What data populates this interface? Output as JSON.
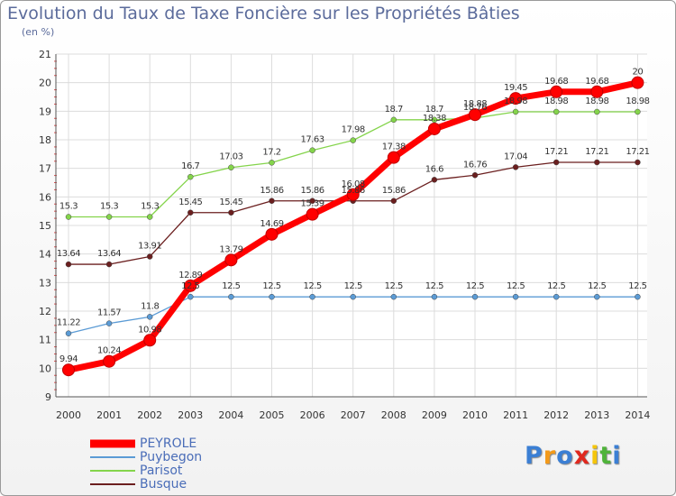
{
  "chart_data": {
    "type": "line",
    "title": "Evolution du Taux de Taxe Foncière sur les Propriétés Bâties",
    "unit": "(en %)",
    "x": [
      "2000",
      "2001",
      "2002",
      "2003",
      "2004",
      "2005",
      "2006",
      "2007",
      "2008",
      "2009",
      "2010",
      "2011",
      "2012",
      "2013",
      "2014"
    ],
    "ylim": [
      9,
      21
    ],
    "yticks": [
      "9",
      "10",
      "11",
      "12",
      "13",
      "14",
      "15",
      "16",
      "17",
      "18",
      "19",
      "20",
      "21"
    ],
    "grid": true,
    "legend_position": "bottom-left",
    "series": [
      {
        "name": "PEYROLE",
        "color": "#ff0000",
        "values": [
          9.94,
          10.24,
          10.98,
          12.89,
          13.79,
          14.69,
          15.39,
          16.08,
          17.38,
          18.38,
          18.88,
          19.45,
          19.68,
          19.68,
          20
        ],
        "labels": [
          "9.94",
          "10.24",
          "10.98",
          "12.89",
          "13.79",
          "14.69",
          "15.39",
          "16.08",
          "17.38",
          "18.38",
          "18.88",
          "19.45",
          "19.68",
          "19.68",
          "20"
        ]
      },
      {
        "name": "Puybegon",
        "color": "#5b9bd5",
        "values": [
          11.22,
          11.57,
          11.8,
          12.5,
          12.5,
          12.5,
          12.5,
          12.5,
          12.5,
          12.5,
          12.5,
          12.5,
          12.5,
          12.5,
          12.5
        ],
        "labels": [
          "11.22",
          "11.57",
          "11.8",
          "12.5",
          "12.5",
          "12.5",
          "12.5",
          "12.5",
          "12.5",
          "12.5",
          "12.5",
          "12.5",
          "12.5",
          "12.5",
          "12.5"
        ]
      },
      {
        "name": "Parisot",
        "color": "#84d44b",
        "values": [
          15.3,
          15.3,
          15.3,
          16.7,
          17.03,
          17.2,
          17.63,
          17.98,
          18.7,
          18.7,
          18.76,
          18.98,
          18.98,
          18.98,
          18.98
        ],
        "labels": [
          "15.3",
          "15.3",
          "15.3",
          "16.7",
          "17.03",
          "17.2",
          "17.63",
          "17.98",
          "18.7",
          "18.7",
          "18.76",
          "18.98",
          "18.98",
          "18.98",
          "18.98"
        ]
      },
      {
        "name": "Busque",
        "color": "#6b1f1f",
        "values": [
          13.64,
          13.64,
          13.91,
          15.45,
          15.45,
          15.86,
          15.86,
          15.86,
          15.86,
          16.6,
          16.76,
          17.04,
          17.21,
          17.21,
          17.21
        ],
        "labels": [
          "13.64",
          "13.64",
          "13.91",
          "15.45",
          "15.45",
          "15.86",
          "15.86",
          "15.86",
          "15.86",
          "16.6",
          "16.76",
          "17.04",
          "17.21",
          "17.21",
          "17.21"
        ]
      }
    ]
  },
  "logo": {
    "letters": [
      "P",
      "r",
      "o",
      "x",
      "i",
      "t",
      "i"
    ],
    "colors": [
      "#3b7fd4",
      "#f39a1a",
      "#3b7fd4",
      "#e0281e",
      "#f5c50a",
      "#4fb33a",
      "#3b7fd4"
    ]
  }
}
